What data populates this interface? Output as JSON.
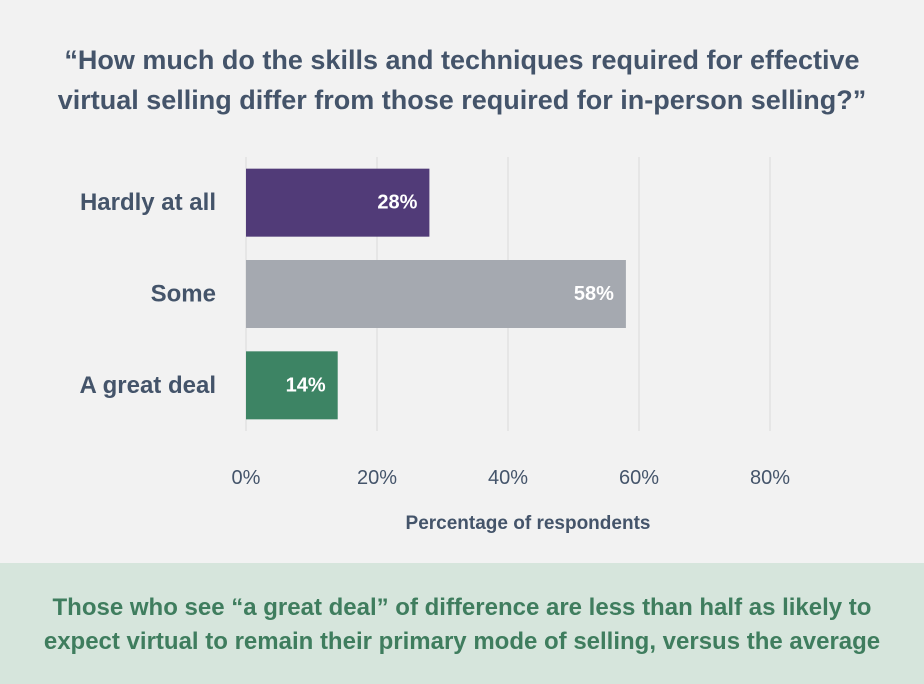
{
  "chart_data": {
    "type": "bar",
    "orientation": "horizontal",
    "title_lines": [
      "“How much do the skills and techniques required for effective",
      "virtual selling differ from those required for in-person selling?”"
    ],
    "categories": [
      "Hardly at all",
      "Some",
      "A great deal"
    ],
    "values": [
      28,
      58,
      14
    ],
    "data_labels": [
      "28%",
      "58%",
      "14%"
    ],
    "colors": [
      "#513b78",
      "#a5a9b0",
      "#3d8464"
    ],
    "xlabel": "Percentage of respondents",
    "xlim": [
      0,
      80
    ],
    "xticks": [
      0,
      20,
      40,
      60,
      80
    ],
    "xtick_labels": [
      "0%",
      "20%",
      "40%",
      "60%",
      "80%"
    ],
    "grid": "vertical"
  },
  "footer": {
    "lines": [
      "Those who see “a great deal” of difference are less than half as likely to",
      "expect virtual to remain their primary mode of selling, versus the average"
    ]
  }
}
